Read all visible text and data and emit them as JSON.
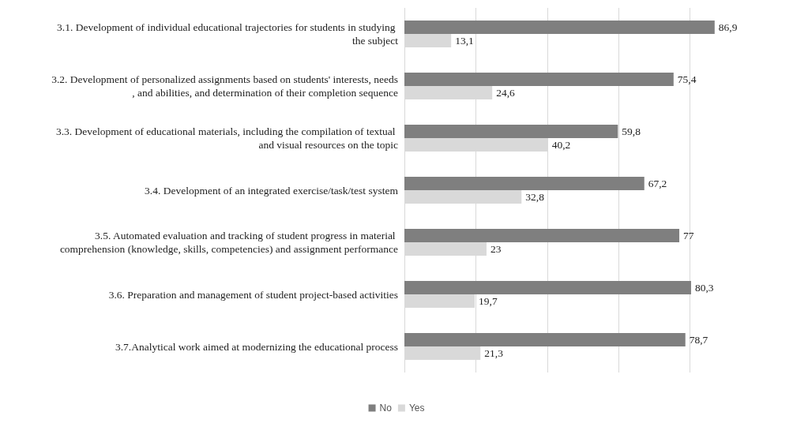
{
  "chart_data": {
    "type": "bar",
    "orientation": "horizontal",
    "categories": [
      "3.1. Development of individual educational trajectories for students in studying the subject",
      "3.2. Development of personalized assignments based on students' interests, needs, and abilities, and determination of their completion sequence",
      "3.3. Development of educational materials, including the compilation of textual and visual resources on the topic",
      "3.4. Development of an integrated exercise/task/test system",
      "3.5. Automated evaluation and tracking of student progress in material comprehension (knowledge, skills, competencies) and assignment performance",
      "3.6. Preparation and management of student project-based activities",
      "3.7.Analytical work aimed at modernizing the educational process"
    ],
    "series": [
      {
        "name": "No",
        "color": "#7f7f7f",
        "values": [
          86.9,
          75.4,
          59.8,
          67.2,
          77,
          80.3,
          78.7
        ],
        "value_labels": [
          "86,9",
          "75,4",
          "59,8",
          "67,2",
          "77",
          "80,3",
          "78,7"
        ]
      },
      {
        "name": "Yes",
        "color": "#d9d9d9",
        "values": [
          13.1,
          24.6,
          40.2,
          32.8,
          23,
          19.7,
          21.3
        ],
        "value_labels": [
          "13,1",
          "24,6",
          "40,2",
          "32,8",
          "23",
          "19,7",
          "21,3"
        ]
      }
    ],
    "xticks": [
      {
        "value": 0,
        "label": null
      },
      {
        "value": 20,
        "label": null
      },
      {
        "value": 40,
        "label": null
      },
      {
        "value": 60,
        "label": null
      },
      {
        "value": 80,
        "label": null
      }
    ],
    "grid": "x",
    "legend": "bottom",
    "tick_labels": "y"
  }
}
